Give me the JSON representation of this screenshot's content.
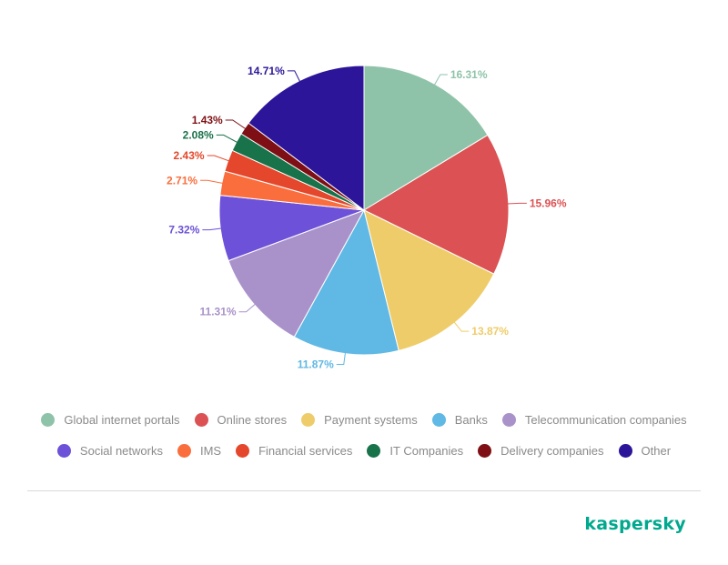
{
  "chart_data": {
    "type": "pie",
    "title": "",
    "start_angle_deg": 0,
    "direction": "clockwise",
    "slices": [
      {
        "name": "Global internet portals",
        "value": 16.31,
        "label": "16.31%",
        "color": "#8fc3a9"
      },
      {
        "name": "Online stores",
        "value": 15.96,
        "label": "15.96%",
        "color": "#dc5254"
      },
      {
        "name": "Payment systems",
        "value": 13.87,
        "label": "13.87%",
        "color": "#efcc6a"
      },
      {
        "name": "Banks",
        "value": 11.87,
        "label": "11.87%",
        "color": "#60b8e4"
      },
      {
        "name": "Telecommunication companies",
        "value": 11.31,
        "label": "11.31%",
        "color": "#a992c9"
      },
      {
        "name": "Social networks",
        "value": 7.32,
        "label": "7.32%",
        "color": "#6d51d8"
      },
      {
        "name": "IMS",
        "value": 2.71,
        "label": "2.71%",
        "color": "#fa6e3d"
      },
      {
        "name": "Financial services",
        "value": 2.43,
        "label": "2.43%",
        "color": "#e4472b"
      },
      {
        "name": "IT Companies",
        "value": 2.08,
        "label": "2.08%",
        "color": "#18724a"
      },
      {
        "name": "Delivery companies",
        "value": 1.43,
        "label": "1.43%",
        "color": "#7e1015"
      },
      {
        "name": "Other",
        "value": 14.71,
        "label": "14.71%",
        "color": "#2c1599"
      }
    ],
    "legend": {
      "placement": "bottom",
      "row1": [
        "Global internet portals",
        "Online stores",
        "Payment systems",
        "Banks",
        "Telecommunication companies"
      ],
      "row2": [
        "Social networks",
        "IMS",
        "Financial services",
        "IT Companies",
        "Delivery companies",
        "Other"
      ]
    }
  },
  "brand": {
    "logo_text": "kaspersky",
    "color": "#00a88e"
  }
}
